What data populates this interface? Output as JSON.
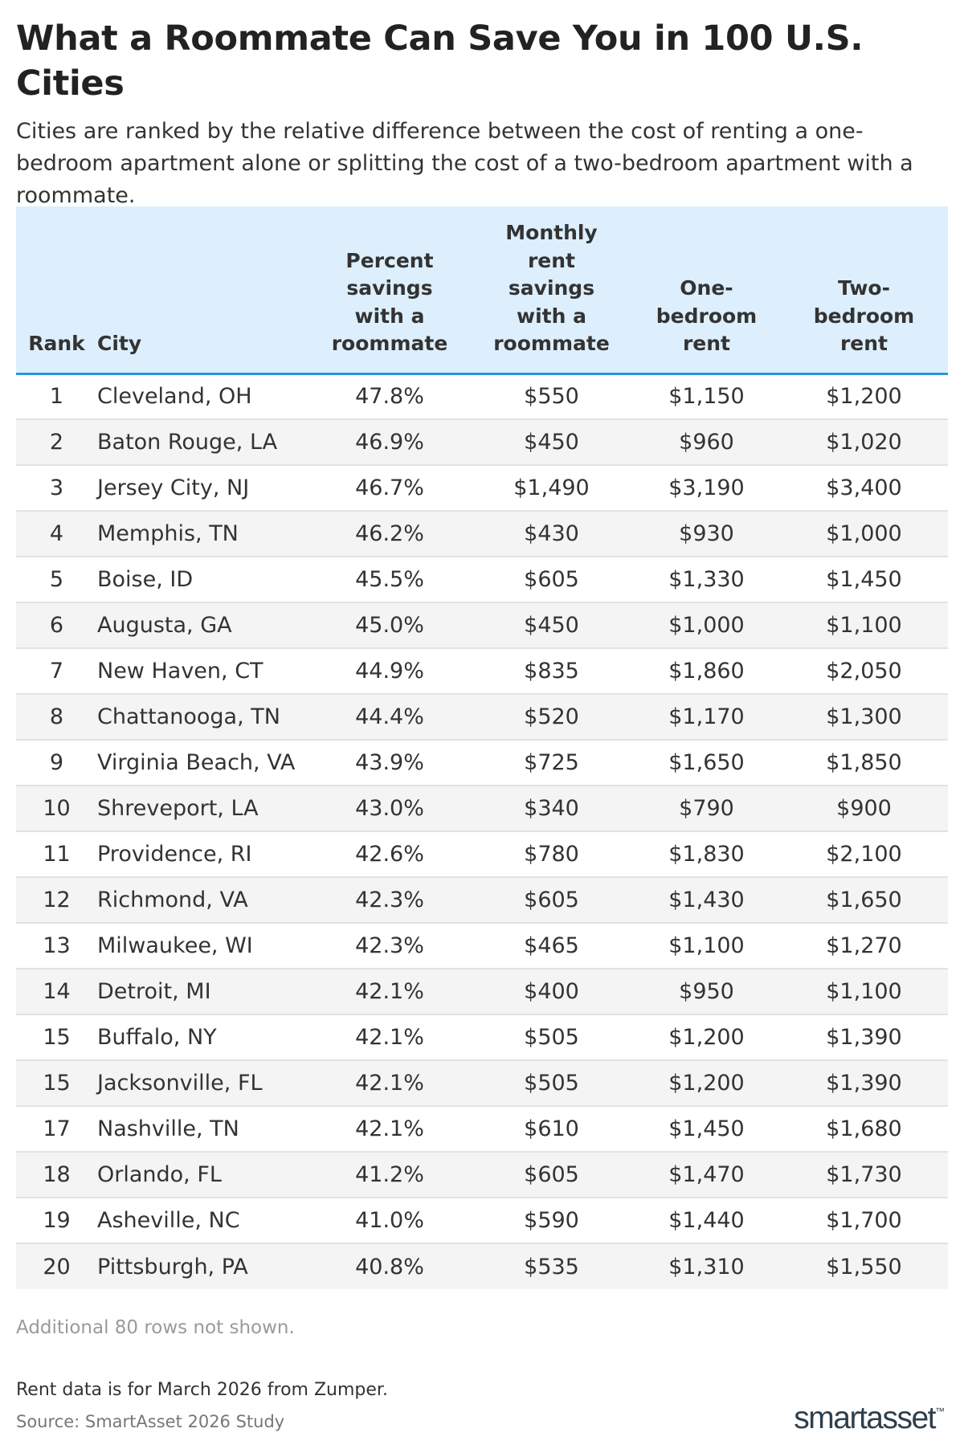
{
  "title": "What a Roommate Can Save You in 100 U.S. Cities",
  "subtitle": "Cities are ranked by the relative difference between the cost of renting a one-bedroom apartment alone or splitting the cost of a two-bedroom apartment with a roommate.",
  "table": {
    "headers": {
      "rank": "Rank",
      "city": "City",
      "percent": "Percent savings with a roommate",
      "monthly": "Monthly rent savings with a roommate",
      "one_bed": "One-bedroom rent",
      "two_bed": "Two-bedroom rent"
    },
    "header_lines": {
      "percent": [
        "Percent",
        "savings",
        "with a",
        "roommate"
      ],
      "monthly": [
        "Monthly",
        "rent",
        "savings",
        "with a",
        "roommate"
      ],
      "one_bed": [
        "One-",
        "bedroom",
        "rent"
      ],
      "two_bed": [
        "Two-",
        "bedroom",
        "rent"
      ]
    },
    "rows": [
      {
        "rank": "1",
        "city": "Cleveland, OH",
        "percent": "47.8%",
        "monthly": "$550",
        "one_bed": "$1,150",
        "two_bed": "$1,200"
      },
      {
        "rank": "2",
        "city": "Baton Rouge, LA",
        "percent": "46.9%",
        "monthly": "$450",
        "one_bed": "$960",
        "two_bed": "$1,020"
      },
      {
        "rank": "3",
        "city": "Jersey City, NJ",
        "percent": "46.7%",
        "monthly": "$1,490",
        "one_bed": "$3,190",
        "two_bed": "$3,400"
      },
      {
        "rank": "4",
        "city": "Memphis, TN",
        "percent": "46.2%",
        "monthly": "$430",
        "one_bed": "$930",
        "two_bed": "$1,000"
      },
      {
        "rank": "5",
        "city": "Boise, ID",
        "percent": "45.5%",
        "monthly": "$605",
        "one_bed": "$1,330",
        "two_bed": "$1,450"
      },
      {
        "rank": "6",
        "city": "Augusta, GA",
        "percent": "45.0%",
        "monthly": "$450",
        "one_bed": "$1,000",
        "two_bed": "$1,100"
      },
      {
        "rank": "7",
        "city": "New Haven, CT",
        "percent": "44.9%",
        "monthly": "$835",
        "one_bed": "$1,860",
        "two_bed": "$2,050"
      },
      {
        "rank": "8",
        "city": "Chattanooga, TN",
        "percent": "44.4%",
        "monthly": "$520",
        "one_bed": "$1,170",
        "two_bed": "$1,300"
      },
      {
        "rank": "9",
        "city": "Virginia Beach, VA",
        "percent": "43.9%",
        "monthly": "$725",
        "one_bed": "$1,650",
        "two_bed": "$1,850"
      },
      {
        "rank": "10",
        "city": "Shreveport, LA",
        "percent": "43.0%",
        "monthly": "$340",
        "one_bed": "$790",
        "two_bed": "$900"
      },
      {
        "rank": "11",
        "city": "Providence, RI",
        "percent": "42.6%",
        "monthly": "$780",
        "one_bed": "$1,830",
        "two_bed": "$2,100"
      },
      {
        "rank": "12",
        "city": "Richmond, VA",
        "percent": "42.3%",
        "monthly": "$605",
        "one_bed": "$1,430",
        "two_bed": "$1,650"
      },
      {
        "rank": "13",
        "city": "Milwaukee, WI",
        "percent": "42.3%",
        "monthly": "$465",
        "one_bed": "$1,100",
        "two_bed": "$1,270"
      },
      {
        "rank": "14",
        "city": "Detroit, MI",
        "percent": "42.1%",
        "monthly": "$400",
        "one_bed": "$950",
        "two_bed": "$1,100"
      },
      {
        "rank": "15",
        "city": "Buffalo, NY",
        "percent": "42.1%",
        "monthly": "$505",
        "one_bed": "$1,200",
        "two_bed": "$1,390"
      },
      {
        "rank": "15",
        "city": "Jacksonville, FL",
        "percent": "42.1%",
        "monthly": "$505",
        "one_bed": "$1,200",
        "two_bed": "$1,390"
      },
      {
        "rank": "17",
        "city": "Nashville, TN",
        "percent": "42.1%",
        "monthly": "$610",
        "one_bed": "$1,450",
        "two_bed": "$1,680"
      },
      {
        "rank": "18",
        "city": "Orlando, FL",
        "percent": "41.2%",
        "monthly": "$605",
        "one_bed": "$1,470",
        "two_bed": "$1,730"
      },
      {
        "rank": "19",
        "city": "Asheville, NC",
        "percent": "41.0%",
        "monthly": "$590",
        "one_bed": "$1,440",
        "two_bed": "$1,700"
      },
      {
        "rank": "20",
        "city": "Pittsburgh, PA",
        "percent": "40.8%",
        "monthly": "$535",
        "one_bed": "$1,310",
        "two_bed": "$1,550"
      }
    ]
  },
  "rows_note": "Additional 80 rows not shown.",
  "footnote": "Rent data is for March 2026 from Zumper.",
  "source": "Source: SmartAsset 2026 Study",
  "logo": {
    "text": "smartasset",
    "mark": "™"
  },
  "colors": {
    "header_bg": "#ddeffc",
    "header_rule": "#2a96d8",
    "stripe": "#f4f4f4"
  },
  "chart_data": {
    "type": "table",
    "title": "What a Roommate Can Save You in 100 U.S. Cities",
    "columns": [
      "Rank",
      "City",
      "Percent savings with a roommate",
      "Monthly rent savings with a roommate",
      "One-bedroom rent",
      "Two-bedroom rent"
    ],
    "rows": [
      [
        1,
        "Cleveland, OH",
        47.8,
        550,
        1150,
        1200
      ],
      [
        2,
        "Baton Rouge, LA",
        46.9,
        450,
        960,
        1020
      ],
      [
        3,
        "Jersey City, NJ",
        46.7,
        1490,
        3190,
        3400
      ],
      [
        4,
        "Memphis, TN",
        46.2,
        430,
        930,
        1000
      ],
      [
        5,
        "Boise, ID",
        45.5,
        605,
        1330,
        1450
      ],
      [
        6,
        "Augusta, GA",
        45.0,
        450,
        1000,
        1100
      ],
      [
        7,
        "New Haven, CT",
        44.9,
        835,
        1860,
        2050
      ],
      [
        8,
        "Chattanooga, TN",
        44.4,
        520,
        1170,
        1300
      ],
      [
        9,
        "Virginia Beach, VA",
        43.9,
        725,
        1650,
        1850
      ],
      [
        10,
        "Shreveport, LA",
        43.0,
        340,
        790,
        900
      ],
      [
        11,
        "Providence, RI",
        42.6,
        780,
        1830,
        2100
      ],
      [
        12,
        "Richmond, VA",
        42.3,
        605,
        1430,
        1650
      ],
      [
        13,
        "Milwaukee, WI",
        42.3,
        465,
        1100,
        1270
      ],
      [
        14,
        "Detroit, MI",
        42.1,
        400,
        950,
        1100
      ],
      [
        15,
        "Buffalo, NY",
        42.1,
        505,
        1200,
        1390
      ],
      [
        15,
        "Jacksonville, FL",
        42.1,
        505,
        1200,
        1390
      ],
      [
        17,
        "Nashville, TN",
        42.1,
        610,
        1450,
        1680
      ],
      [
        18,
        "Orlando, FL",
        41.2,
        605,
        1470,
        1730
      ],
      [
        19,
        "Asheville, NC",
        41.0,
        590,
        1440,
        1700
      ],
      [
        20,
        "Pittsburgh, PA",
        40.8,
        535,
        1310,
        1550
      ]
    ]
  }
}
